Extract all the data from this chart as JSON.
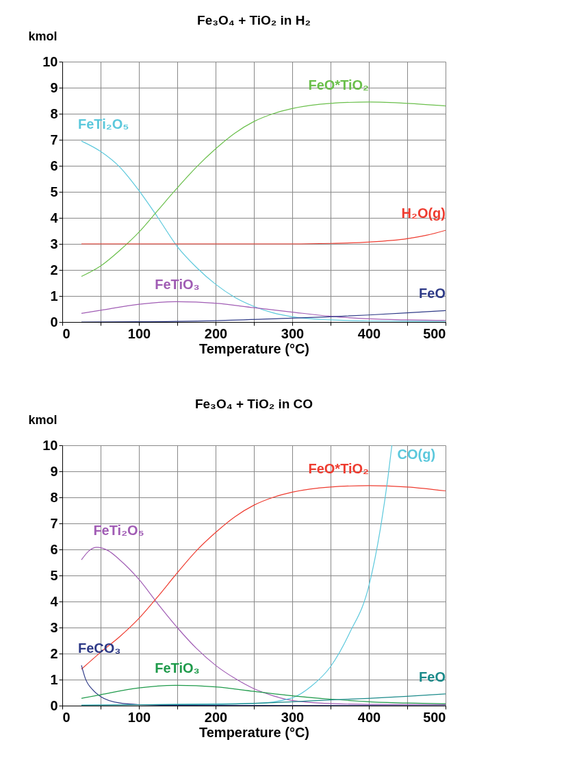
{
  "chart_data": [
    {
      "type": "line",
      "title": "Fe₃O₄ + TiO₂ in H₂",
      "xlabel": "Temperature (°C)",
      "ylabel": "kmol",
      "xlim": [
        0,
        500
      ],
      "ylim": [
        0,
        10
      ],
      "xticks": [
        0,
        {
          "value": 50,
          "label": null
        },
        100,
        {
          "value": 150,
          "label": null
        },
        200,
        {
          "value": 250,
          "label": null
        },
        300,
        {
          "value": 350,
          "label": null
        },
        400,
        {
          "value": 450,
          "label": null
        },
        500
      ],
      "yticks": [
        0,
        1,
        2,
        3,
        4,
        5,
        6,
        7,
        8,
        9,
        10
      ],
      "grid": true,
      "legend": false,
      "series": [
        {
          "name": "FeTi₂O₅",
          "color": "#5bc8dc",
          "x": [
            25,
            50,
            75,
            100,
            125,
            150,
            175,
            200,
            225,
            250,
            275,
            300,
            350,
            400,
            450,
            500
          ],
          "values": [
            6.95,
            6.55,
            5.95,
            5.05,
            4.0,
            2.9,
            2.1,
            1.45,
            0.95,
            0.6,
            0.35,
            0.2,
            0.08,
            0.04,
            0.03,
            0.02
          ]
        },
        {
          "name": "FeO*TiO₂",
          "color": "#6abf4b",
          "x": [
            25,
            50,
            75,
            100,
            125,
            150,
            175,
            200,
            225,
            250,
            275,
            300,
            350,
            400,
            450,
            500
          ],
          "values": [
            1.75,
            2.15,
            2.75,
            3.45,
            4.3,
            5.15,
            5.95,
            6.65,
            7.25,
            7.7,
            8.0,
            8.2,
            8.4,
            8.45,
            8.4,
            8.3
          ]
        },
        {
          "name": "H₂O(g)",
          "color": "#ee3b2f",
          "x": [
            25,
            100,
            200,
            300,
            350,
            400,
            450,
            475,
            500
          ],
          "values": [
            3.0,
            3.0,
            3.0,
            3.0,
            3.02,
            3.07,
            3.2,
            3.33,
            3.52
          ]
        },
        {
          "name": "FeTiO₃",
          "color": "#a05cb4",
          "x": [
            25,
            50,
            100,
            150,
            200,
            250,
            300,
            350,
            400,
            450,
            500
          ],
          "values": [
            0.33,
            0.45,
            0.68,
            0.78,
            0.72,
            0.55,
            0.38,
            0.22,
            0.12,
            0.08,
            0.06
          ]
        },
        {
          "name": "FeO",
          "color": "#2e3a87",
          "x": [
            25,
            100,
            200,
            300,
            350,
            400,
            450,
            500
          ],
          "values": [
            0.0,
            0.01,
            0.05,
            0.15,
            0.2,
            0.27,
            0.35,
            0.44
          ]
        }
      ]
    },
    {
      "type": "line",
      "title": "Fe₃O₄ + TiO₂ in CO",
      "xlabel": "Temperature (°C)",
      "ylabel": "kmol",
      "xlim": [
        0,
        500
      ],
      "ylim": [
        0,
        10
      ],
      "xticks": [
        0,
        {
          "value": 50,
          "label": null
        },
        100,
        {
          "value": 150,
          "label": null
        },
        200,
        {
          "value": 250,
          "label": null
        },
        300,
        {
          "value": 350,
          "label": null
        },
        400,
        {
          "value": 450,
          "label": null
        },
        500
      ],
      "yticks": [
        0,
        1,
        2,
        3,
        4,
        5,
        6,
        7,
        8,
        9,
        10
      ],
      "grid": true,
      "legend": false,
      "series": [
        {
          "name": "FeTi₂O₅",
          "color": "#a05cb4",
          "x": [
            25,
            35,
            45,
            60,
            75,
            100,
            125,
            150,
            175,
            200,
            225,
            250,
            275,
            300,
            350,
            400,
            500
          ],
          "values": [
            5.6,
            5.95,
            6.08,
            5.95,
            5.6,
            4.85,
            3.9,
            3.0,
            2.2,
            1.55,
            1.05,
            0.65,
            0.38,
            0.2,
            0.08,
            0.05,
            0.04
          ]
        },
        {
          "name": "FeO*TiO₂",
          "color": "#ee3b2f",
          "x": [
            25,
            50,
            75,
            100,
            125,
            150,
            175,
            200,
            225,
            250,
            275,
            300,
            350,
            400,
            450,
            500
          ],
          "values": [
            1.4,
            2.05,
            2.65,
            3.35,
            4.2,
            5.1,
            5.95,
            6.65,
            7.25,
            7.7,
            8.0,
            8.2,
            8.4,
            8.45,
            8.4,
            8.25
          ]
        },
        {
          "name": "CO(g)",
          "color": "#5bc8dc",
          "x": [
            25,
            250,
            300,
            325,
            350,
            375,
            400,
            415,
            425,
            430
          ],
          "values": [
            0.02,
            0.08,
            0.3,
            0.75,
            1.5,
            2.8,
            4.6,
            6.8,
            8.8,
            10.0
          ]
        },
        {
          "name": "FeCO₃",
          "color": "#2e3a87",
          "x": [
            25,
            30,
            40,
            50,
            75,
            100,
            150,
            500
          ],
          "values": [
            1.55,
            1.05,
            0.6,
            0.35,
            0.1,
            0.04,
            0.01,
            0.0
          ]
        },
        {
          "name": "FeTiO₃",
          "color": "#1e9a4a",
          "x": [
            25,
            50,
            100,
            150,
            200,
            250,
            300,
            350,
            400,
            450,
            500
          ],
          "values": [
            0.28,
            0.42,
            0.68,
            0.78,
            0.72,
            0.55,
            0.38,
            0.25,
            0.15,
            0.1,
            0.07
          ]
        },
        {
          "name": "FeO",
          "color": "#1b8a8a",
          "x": [
            25,
            200,
            300,
            350,
            400,
            450,
            500
          ],
          "values": [
            0.02,
            0.05,
            0.15,
            0.22,
            0.28,
            0.36,
            0.45
          ]
        }
      ]
    }
  ]
}
